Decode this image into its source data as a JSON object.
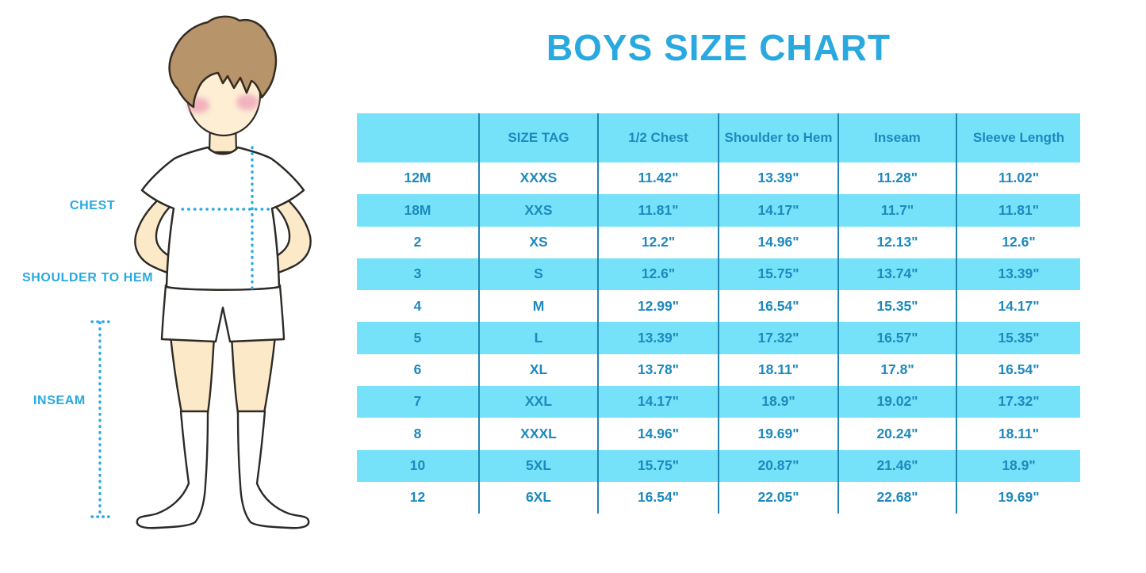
{
  "title": "BOYS SIZE CHART",
  "illustration": {
    "figure": "boy-standing-front-hands-on-hips",
    "labels": {
      "chest": "CHEST",
      "shoulder_to_hem": "SHOULDER TO HEM",
      "inseam": "INSEAM"
    }
  },
  "colors": {
    "accent_blue": "#29a9e0",
    "dotted_line_blue": "#29abe2",
    "row_cyan": "#75e2fa",
    "table_text_blue": "#1d89bd",
    "grid_line_blue": "#2184b2",
    "skin": "#fbe9c8",
    "hair_brown": "#b8946a",
    "blush_pink": "#efa4b9"
  },
  "chart_data": {
    "type": "table",
    "title": "BOYS SIZE CHART",
    "columns": [
      "",
      "SIZE TAG",
      "1/2 Chest",
      "Shoulder to Hem",
      "Inseam",
      "Sleeve Length"
    ],
    "rows": [
      [
        "12M",
        "XXXS",
        "11.42\"",
        "13.39\"",
        "11.28\"",
        "11.02\""
      ],
      [
        "18M",
        "XXS",
        "11.81\"",
        "14.17\"",
        "11.7\"",
        "11.81\""
      ],
      [
        "2",
        "XS",
        "12.2\"",
        "14.96\"",
        "12.13\"",
        "12.6\""
      ],
      [
        "3",
        "S",
        "12.6\"",
        "15.75\"",
        "13.74\"",
        "13.39\""
      ],
      [
        "4",
        "M",
        "12.99\"",
        "16.54\"",
        "15.35\"",
        "14.17\""
      ],
      [
        "5",
        "L",
        "13.39\"",
        "17.32\"",
        "16.57\"",
        "15.35\""
      ],
      [
        "6",
        "XL",
        "13.78\"",
        "18.11\"",
        "17.8\"",
        "16.54\""
      ],
      [
        "7",
        "XXL",
        "14.17\"",
        "18.9\"",
        "19.02\"",
        "17.32\""
      ],
      [
        "8",
        "XXXL",
        "14.96\"",
        "19.69\"",
        "20.24\"",
        "18.11\""
      ],
      [
        "10",
        "5XL",
        "15.75\"",
        "20.87\"",
        "21.46\"",
        "18.9\""
      ],
      [
        "12",
        "6XL",
        "16.54\"",
        "22.05\"",
        "22.68\"",
        "19.69\""
      ]
    ],
    "stripe_pattern": "header cyan, then rows alternate white/cyan starting white",
    "grid": "vertical separators only"
  }
}
